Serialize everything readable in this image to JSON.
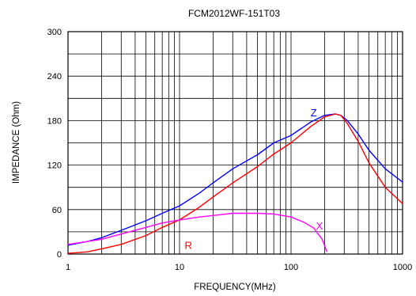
{
  "chart_data": {
    "type": "line",
    "title": "FCM2012WF-151T03",
    "xlabel": "FREQUENCY(MHz)",
    "ylabel": "IMPEDANCE (Ohm)",
    "x_scale": "log",
    "xlim": [
      1,
      1000
    ],
    "ylim": [
      0,
      300
    ],
    "x_ticks": [
      1,
      10,
      100,
      1000
    ],
    "x_tick_labels": [
      "1",
      "10",
      "100",
      "1000"
    ],
    "y_ticks": [
      0,
      60,
      120,
      180,
      240,
      300
    ],
    "y_tick_labels": [
      "0",
      "60",
      "120",
      "180",
      "240",
      "300"
    ],
    "grid": true,
    "series": [
      {
        "name": "Z",
        "color": "#0000ff",
        "x": [
          1,
          1.5,
          2,
          3,
          5,
          7,
          10,
          15,
          20,
          30,
          50,
          70,
          100,
          150,
          200,
          250,
          280,
          320,
          400,
          500,
          700,
          1000
        ],
        "y": [
          12,
          17,
          22,
          32,
          45,
          55,
          65,
          82,
          96,
          115,
          134,
          150,
          160,
          178,
          187,
          189,
          187,
          180,
          162,
          140,
          115,
          97
        ]
      },
      {
        "name": "R",
        "color": "#ff0000",
        "x": [
          1,
          1.5,
          2,
          3,
          5,
          7,
          10,
          15,
          20,
          30,
          50,
          70,
          100,
          150,
          200,
          250,
          280,
          320,
          400,
          500,
          700,
          1000
        ],
        "y": [
          1,
          3,
          7,
          13,
          25,
          36,
          46,
          63,
          77,
          96,
          118,
          135,
          150,
          172,
          185,
          189,
          187,
          176,
          152,
          123,
          90,
          68
        ]
      },
      {
        "name": "X",
        "color": "#ff00ff",
        "x": [
          1,
          1.5,
          2,
          3,
          5,
          7,
          10,
          15,
          20,
          30,
          50,
          70,
          100,
          130,
          160,
          190,
          210
        ],
        "y": [
          13,
          17,
          20,
          27,
          36,
          42,
          46,
          50,
          52,
          55,
          55,
          54,
          50,
          43,
          35,
          20,
          3
        ]
      }
    ],
    "annotations": [
      {
        "text": "Z",
        "color": "#0000ff",
        "x": 160,
        "y": 186
      },
      {
        "text": "R",
        "color": "#ff0000",
        "x": 12,
        "y": 7
      },
      {
        "text": "X",
        "color": "#ff00ff",
        "x": 180,
        "y": 33
      }
    ]
  }
}
